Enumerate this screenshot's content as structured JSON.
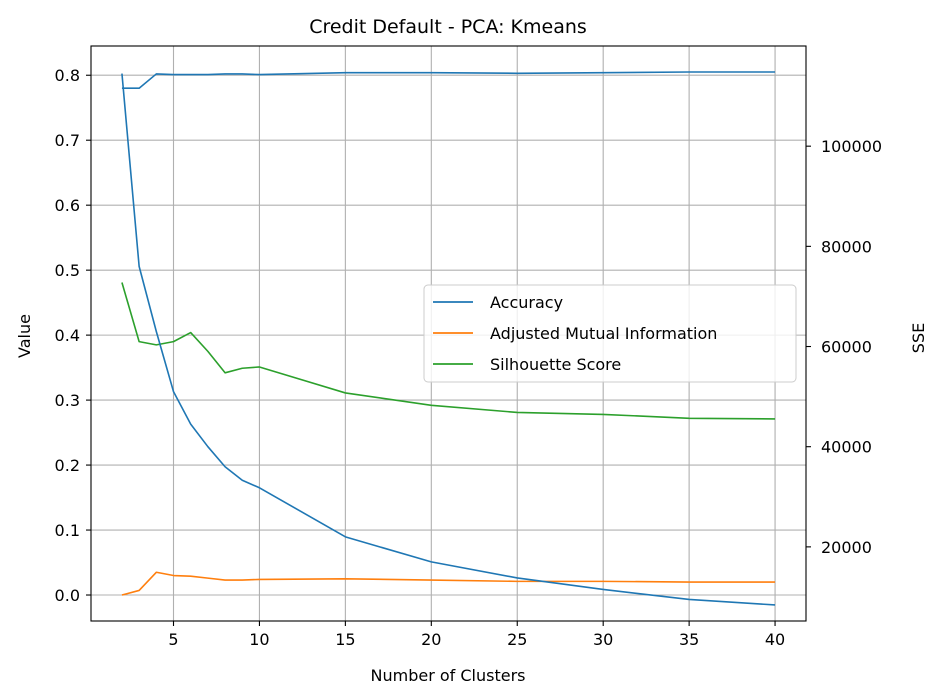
{
  "chart_data": {
    "type": "line",
    "title": "Credit Default - PCA: Kmeans",
    "xlabel": "Number of Clusters",
    "ylabel": "Value",
    "y2label": "SSE",
    "xlim": [
      0.2,
      41.8
    ],
    "ylim": [
      -0.04,
      0.845
    ],
    "y2lim": [
      5200,
      120000
    ],
    "xticks": [
      5,
      10,
      15,
      20,
      25,
      30,
      35,
      40
    ],
    "yticks": [
      0.0,
      0.1,
      0.2,
      0.3,
      0.4,
      0.5,
      0.6,
      0.7,
      0.8
    ],
    "yticklabels": [
      "0.0",
      "0.1",
      "0.2",
      "0.3",
      "0.4",
      "0.5",
      "0.6",
      "0.7",
      "0.8"
    ],
    "y2ticks": [
      20000,
      40000,
      60000,
      80000,
      100000
    ],
    "grid": true,
    "legend_position": "center-right",
    "series": [
      {
        "name": "Accuracy",
        "axis": "left",
        "color": "#1f77b4",
        "x": [
          2,
          3,
          4,
          5,
          6,
          7,
          8,
          9,
          10,
          15,
          20,
          25,
          30,
          35,
          40
        ],
        "values": [
          0.78,
          0.78,
          0.802,
          0.801,
          0.801,
          0.801,
          0.802,
          0.802,
          0.801,
          0.804,
          0.804,
          0.803,
          0.804,
          0.805,
          0.805
        ]
      },
      {
        "name": "Adjusted Mutual Information",
        "axis": "left",
        "color": "#ff7f0e",
        "x": [
          2,
          3,
          4,
          5,
          6,
          7,
          8,
          9,
          10,
          15,
          20,
          25,
          30,
          35,
          40
        ],
        "values": [
          0.0,
          0.007,
          0.035,
          0.03,
          0.029,
          0.026,
          0.023,
          0.023,
          0.024,
          0.025,
          0.023,
          0.021,
          0.021,
          0.02,
          0.02
        ]
      },
      {
        "name": "Silhouette Score",
        "axis": "left",
        "color": "#2ca02c",
        "x": [
          2,
          3,
          4,
          5,
          6,
          7,
          8,
          9,
          10,
          15,
          20,
          25,
          30,
          35,
          40
        ],
        "values": [
          0.481,
          0.39,
          0.385,
          0.39,
          0.404,
          0.375,
          0.342,
          0.349,
          0.351,
          0.311,
          0.292,
          0.281,
          0.278,
          0.272,
          0.271
        ]
      },
      {
        "axis": "right",
        "color": "#1f77b4",
        "x": [
          2,
          3,
          4,
          5,
          6,
          7,
          8,
          9,
          10,
          15,
          20,
          25,
          30,
          35,
          40
        ],
        "values": [
          114500,
          76000,
          63000,
          51000,
          44500,
          40000,
          36000,
          33300,
          31800,
          22000,
          17000,
          13800,
          11500,
          9500,
          8400
        ]
      }
    ]
  }
}
